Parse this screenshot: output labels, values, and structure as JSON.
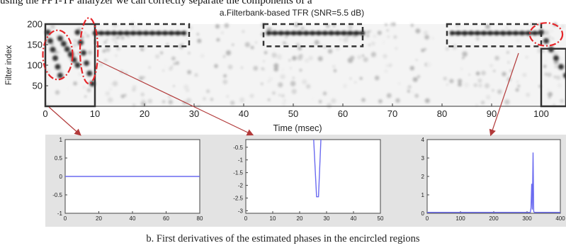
{
  "top_text": "using the FPT-TF analyzer we can correctly separate the components of a",
  "caption": "b. First derivatives of the estimated phases in the encircled regions",
  "colors": {
    "background": "#ffffff",
    "panel_bg": "#e3e3e3",
    "plot_bg": "#ffffff",
    "line": "#6a6af0",
    "highlight": "#e5262a",
    "frame": "#333333",
    "arrow": "#b23a3a"
  },
  "chart_data": [
    {
      "type": "heatmap",
      "title": "a.Filterbank-based TFR (SNR=5.5 dB)",
      "xlabel": "Time (msec)",
      "ylabel": "Filter index",
      "xlim": [
        0,
        105
      ],
      "ylim": [
        0,
        200
      ],
      "xticks": [
        0,
        10,
        20,
        30,
        40,
        50,
        60,
        70,
        80,
        90,
        100
      ],
      "yticks": [
        50,
        100,
        150,
        200
      ],
      "components": [
        {
          "kind": "tone",
          "t0": 10,
          "t1": 28,
          "f": 178
        },
        {
          "kind": "tone",
          "t0": 45,
          "t1": 64,
          "f": 178
        },
        {
          "kind": "tone",
          "t0": 82,
          "t1": 100,
          "f": 178
        },
        {
          "kind": "chirp",
          "t0": 0.5,
          "t1": 3,
          "f0": 180,
          "f1": 75
        },
        {
          "kind": "chirp",
          "t0": 3,
          "t1": 6.5,
          "f0": 165,
          "f1": 100
        },
        {
          "kind": "chirp",
          "t0": 6.5,
          "t1": 9.5,
          "f0": 180,
          "f1": 55
        },
        {
          "kind": "chirp",
          "t0": 100,
          "t1": 105,
          "f0": 180,
          "f1": 75
        }
      ],
      "solid_boxes": [
        {
          "t0": 0,
          "t1": 10,
          "f0": 0,
          "f1": 200
        },
        {
          "t0": 100,
          "t1": 105,
          "f0": 0,
          "f1": 140
        }
      ],
      "dashed_boxes": [
        {
          "t0": 10,
          "t1": 29,
          "f0": 146,
          "f1": 200
        },
        {
          "t0": 44,
          "t1": 64,
          "f0": 146,
          "f1": 200
        },
        {
          "t0": 81,
          "t1": 100,
          "f0": 146,
          "f1": 200
        }
      ],
      "encircled_regions": [
        {
          "t": 2.5,
          "f": 125,
          "rt": 3,
          "rf": 60
        },
        {
          "t": 8.8,
          "f": 135,
          "rt": 1.8,
          "rf": 80
        },
        {
          "t": 101,
          "f": 175,
          "rt": 3.3,
          "rf": 28
        }
      ]
    },
    {
      "type": "line",
      "xlim": [
        0,
        80
      ],
      "ylim": [
        -1,
        1
      ],
      "xticks": [
        0,
        20,
        40,
        60,
        80
      ],
      "yticks": [
        -1,
        -0.5,
        0,
        0.5,
        1
      ],
      "x": [
        0,
        80
      ],
      "y": [
        0,
        0
      ]
    },
    {
      "type": "line",
      "xlim": [
        0,
        50
      ],
      "ylim": [
        -3.1,
        -0.2
      ],
      "xticks": [
        0,
        10,
        20,
        30,
        40,
        50
      ],
      "yticks": [
        -0.5,
        -1,
        -1.5,
        -2,
        -2.5,
        -3
      ],
      "x": [
        25.2,
        26.3,
        27,
        27.9
      ],
      "y": [
        -0.2,
        -2.45,
        -2.45,
        -0.2
      ]
    },
    {
      "type": "line",
      "xlim": [
        0,
        400
      ],
      "ylim": [
        0,
        4
      ],
      "xticks": [
        0,
        100,
        200,
        300,
        400
      ],
      "yticks": [
        0,
        1,
        2,
        3,
        4
      ],
      "x": [
        0,
        310,
        312,
        314,
        316,
        318,
        320,
        322,
        400
      ],
      "y": [
        0.05,
        0.05,
        0.3,
        1.6,
        0.2,
        3.3,
        0.1,
        0.05,
        0.05
      ]
    }
  ]
}
